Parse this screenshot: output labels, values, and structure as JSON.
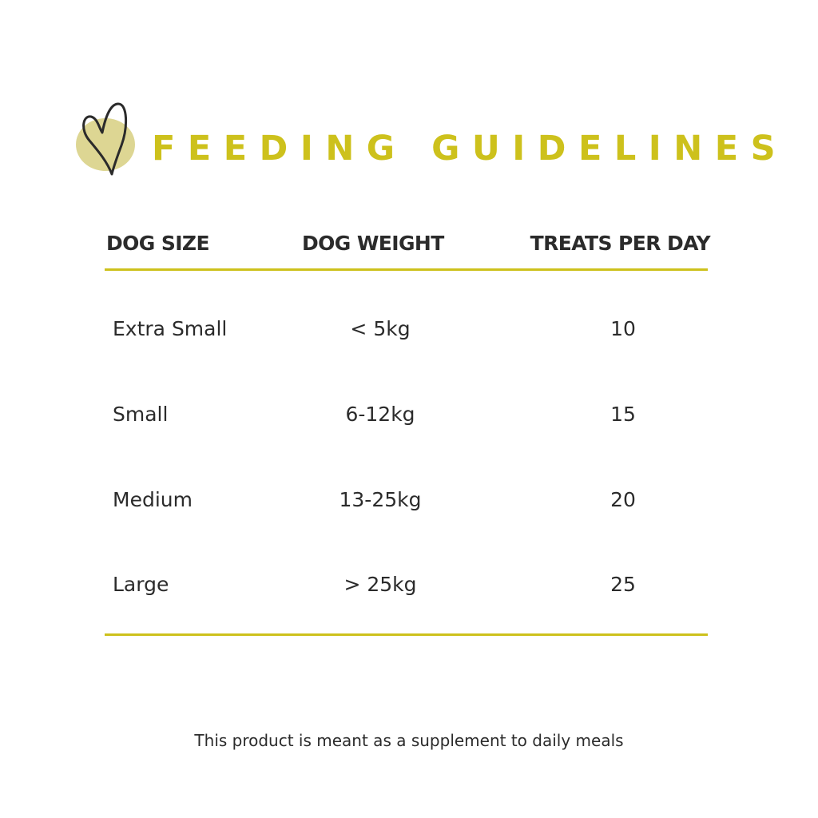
{
  "title": "FEEDING GUIDELINES",
  "logo_icon": "heart-icon",
  "colors": {
    "accent": "#cdc11c",
    "blob": "#ddd693",
    "text": "#2b2b2b",
    "background": "#ffffff"
  },
  "table": {
    "headers": {
      "size": "DOG SIZE",
      "weight": "DOG WEIGHT",
      "treats": "TREATS PER DAY"
    },
    "rows": [
      {
        "size": "Extra Small",
        "weight": "< 5kg",
        "treats": "10"
      },
      {
        "size": "Small",
        "weight": "6-12kg",
        "treats": "15"
      },
      {
        "size": "Medium",
        "weight": "13-25kg",
        "treats": "20"
      },
      {
        "size": "Large",
        "weight": "> 25kg",
        "treats": "25"
      }
    ]
  },
  "footnote": "This product is meant as a supplement to daily meals"
}
